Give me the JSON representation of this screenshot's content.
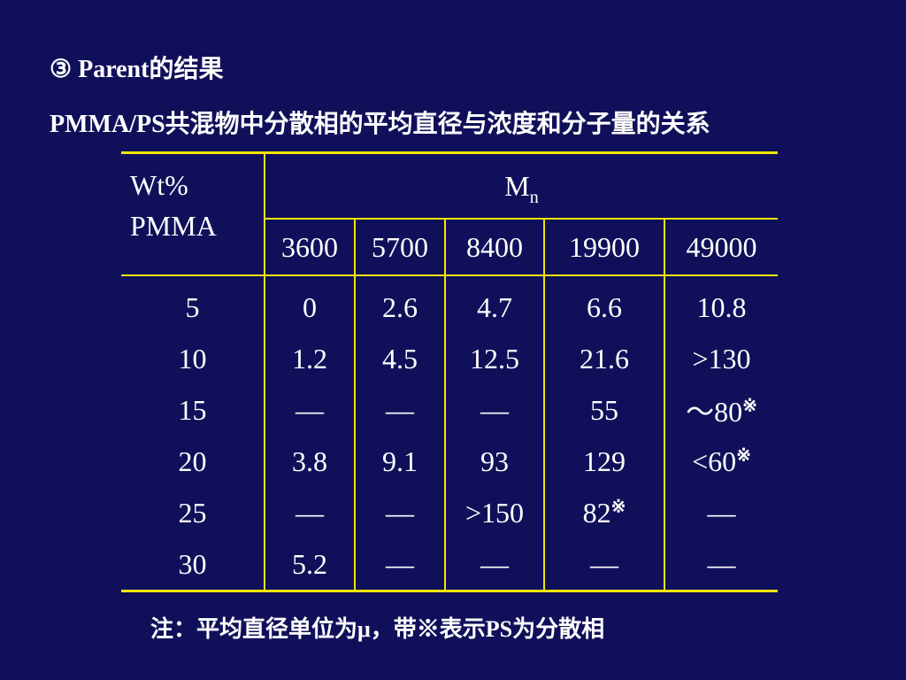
{
  "title": "③ Parent的结果",
  "subtitle": "PMMA/PS共混物中分散相的平均直径与浓度和分子量的关系",
  "table": {
    "row_header_line1": "Wt%",
    "row_header_line2": "PMMA",
    "group_header_base": "M",
    "group_header_sub": "n",
    "columns": [
      "3600",
      "5700",
      "8400",
      "19900",
      "49000"
    ],
    "rows": [
      {
        "wt": "5",
        "cells": [
          {
            "v": "0"
          },
          {
            "v": "2.6"
          },
          {
            "v": "4.7"
          },
          {
            "v": "6.6"
          },
          {
            "v": "10.8"
          }
        ]
      },
      {
        "wt": "10",
        "cells": [
          {
            "v": "1.2"
          },
          {
            "v": "4.5"
          },
          {
            "v": "12.5"
          },
          {
            "v": "21.6"
          },
          {
            "v": ">130"
          }
        ]
      },
      {
        "wt": "15",
        "cells": [
          {
            "v": "—"
          },
          {
            "v": "—"
          },
          {
            "v": "—"
          },
          {
            "v": "55"
          },
          {
            "v": "～80",
            "mark": "※"
          }
        ]
      },
      {
        "wt": "20",
        "cells": [
          {
            "v": "3.8"
          },
          {
            "v": "9.1"
          },
          {
            "v": "93"
          },
          {
            "v": "129"
          },
          {
            "v": "<60",
            "mark": "※"
          }
        ]
      },
      {
        "wt": "25",
        "cells": [
          {
            "v": "—"
          },
          {
            "v": "—"
          },
          {
            "v": ">150"
          },
          {
            "v": "82",
            "mark": "※"
          },
          {
            "v": "—"
          }
        ]
      },
      {
        "wt": "30",
        "cells": [
          {
            "v": "5.2"
          },
          {
            "v": "—"
          },
          {
            "v": "—"
          },
          {
            "v": "—"
          },
          {
            "v": "—"
          }
        ]
      }
    ]
  },
  "note": "注：平均直径单位为μ，带※表示PS为分散相"
}
